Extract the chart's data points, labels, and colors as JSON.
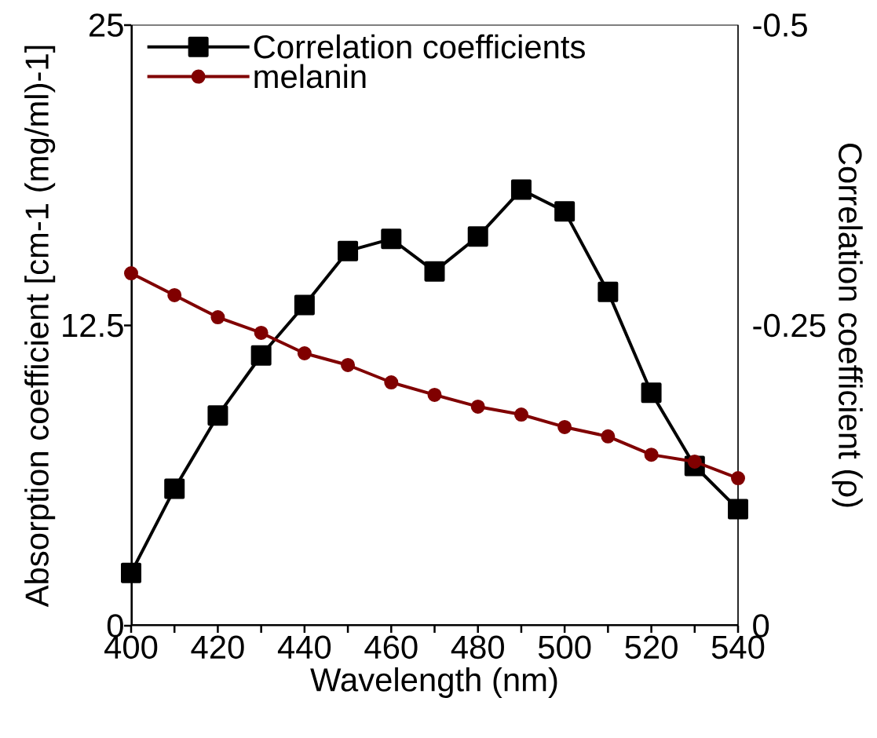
{
  "chart_data": {
    "type": "line",
    "xlabel": "Wavelength (nm)",
    "ylabel": "Absorption coefficient [cm-1 (mg/ml)-1]",
    "y2label": "Correlation coefficient (ρ)",
    "x": [
      400,
      410,
      420,
      430,
      440,
      450,
      460,
      470,
      480,
      490,
      500,
      510,
      520,
      530,
      540
    ],
    "xlim": [
      400,
      540
    ],
    "xticks": [
      400,
      {
        "value": 410,
        "label": null
      },
      420,
      {
        "value": 430,
        "label": null
      },
      440,
      {
        "value": 450,
        "label": null
      },
      460,
      {
        "value": 470,
        "label": null
      },
      480,
      {
        "value": 490,
        "label": null
      },
      500,
      {
        "value": 510,
        "label": null
      },
      520,
      {
        "value": 530,
        "label": null
      },
      540
    ],
    "ylim": [
      0,
      25
    ],
    "yticks": [
      0,
      12.5,
      25
    ],
    "y2lim": [
      0,
      -0.5
    ],
    "y2ticks": [
      0,
      -0.25,
      -0.5
    ],
    "legend": "top left",
    "grid": false,
    "line_style": "solid",
    "series": [
      {
        "name": "Correlation coefficients",
        "color": "#000000",
        "axis": "y2",
        "marker": "square",
        "values": [
          -0.044,
          -0.114,
          -0.175,
          -0.225,
          -0.267,
          -0.312,
          -0.322,
          -0.295,
          -0.324,
          -0.363,
          -0.345,
          -0.278,
          -0.194,
          -0.133,
          -0.097
        ]
      },
      {
        "name": "melanin",
        "color": "#800000",
        "axis": "y",
        "marker": "circle",
        "values": [
          14.67,
          13.76,
          12.84,
          12.19,
          11.34,
          10.85,
          10.13,
          9.61,
          9.12,
          8.79,
          8.27,
          7.88,
          7.12,
          6.83,
          6.14
        ]
      }
    ]
  }
}
